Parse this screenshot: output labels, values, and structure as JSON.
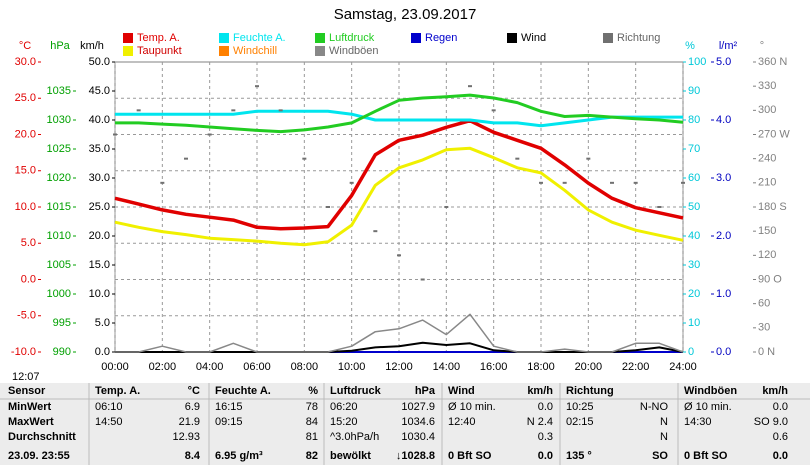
{
  "chart_data": {
    "type": "line",
    "title": "Samstag, 23.09.2017",
    "x": [
      0,
      1,
      2,
      3,
      4,
      5,
      6,
      7,
      8,
      9,
      10,
      11,
      12,
      13,
      14,
      15,
      16,
      17,
      18,
      19,
      20,
      21,
      22,
      23,
      24
    ],
    "xlim": [
      0,
      24
    ],
    "xticks": [
      {
        "value": 0,
        "label": "00:00"
      },
      {
        "value": 2,
        "label": "02:00"
      },
      {
        "value": 4,
        "label": "04:00"
      },
      {
        "value": 6,
        "label": "06:00"
      },
      {
        "value": 8,
        "label": "08:00"
      },
      {
        "value": 10,
        "label": "10:00"
      },
      {
        "value": 12,
        "label": "12:00"
      },
      {
        "value": 14,
        "label": "14:00"
      },
      {
        "value": 16,
        "label": "16:00"
      },
      {
        "value": 18,
        "label": "18:00"
      },
      {
        "value": 20,
        "label": "20:00"
      },
      {
        "value": 22,
        "label": "22:00"
      },
      {
        "value": 24,
        "label": "24:00"
      }
    ],
    "grid": true,
    "ylabel": "°C",
    "ycolor": "#e00000",
    "ylim": [
      -10,
      30
    ],
    "yticks": [
      {
        "value": -10,
        "label": "-10.0"
      },
      {
        "value": -5,
        "label": "-5.0"
      },
      {
        "value": 0,
        "label": "0.0"
      },
      {
        "value": 5,
        "label": "5.0"
      },
      {
        "value": 10,
        "label": "10.0"
      },
      {
        "value": 15,
        "label": "15.0"
      },
      {
        "value": 20,
        "label": "20.0"
      },
      {
        "value": 25,
        "label": "25.0"
      },
      {
        "value": 30,
        "label": "30.0"
      }
    ],
    "y2label": "hPa",
    "y2color": "#00a000",
    "y2lim": [
      990,
      1040
    ],
    "y2ticks": [
      990,
      995,
      1000,
      1005,
      1010,
      1015,
      1020,
      1025,
      1030,
      1035
    ],
    "y3label": "km/h",
    "y3color": "#000000",
    "y3lim": [
      0,
      50
    ],
    "y3ticks": [
      {
        "value": 0,
        "label": "0.0"
      },
      {
        "value": 5,
        "label": "5.0"
      },
      {
        "value": 10,
        "label": "10.0"
      },
      {
        "value": 15,
        "label": "15.0"
      },
      {
        "value": 20,
        "label": "20.0"
      },
      {
        "value": 25,
        "label": "25.0"
      },
      {
        "value": 30,
        "label": "30.0"
      },
      {
        "value": 35,
        "label": "35.0"
      },
      {
        "value": 40,
        "label": "40.0"
      },
      {
        "value": 45,
        "label": "45.0"
      },
      {
        "value": 50,
        "label": "50.0"
      }
    ],
    "y4label": "%",
    "y4color": "#00c8d8",
    "y4lim": [
      0,
      100
    ],
    "y4ticks": [
      0,
      10,
      20,
      30,
      40,
      50,
      60,
      70,
      80,
      90,
      100
    ],
    "y5label": "l/m²",
    "y5color": "#0000c0",
    "y5lim": [
      0,
      5
    ],
    "y5ticks": [
      {
        "value": 0,
        "label": "0.0"
      },
      {
        "value": 1,
        "label": "1.0"
      },
      {
        "value": 2,
        "label": "2.0"
      },
      {
        "value": 3,
        "label": "3.0"
      },
      {
        "value": 4,
        "label": "4.0"
      },
      {
        "value": 5,
        "label": "5.0"
      }
    ],
    "y6label": "°",
    "y6color": "#808080",
    "y6lim": [
      0,
      360
    ],
    "y6ticks": [
      {
        "value": 0,
        "label": "0 N"
      },
      30,
      60,
      {
        "value": 90,
        "label": "90 O"
      },
      120,
      150,
      {
        "value": 180,
        "label": "180 S"
      },
      210,
      240,
      {
        "value": 270,
        "label": "270 W"
      },
      300,
      330,
      {
        "value": 360,
        "label": "360 N"
      }
    ],
    "series": [
      {
        "name": "Temp. A.",
        "color": "#e00000",
        "axis": "y",
        "width": 3.5,
        "values": [
          11.2,
          10.4,
          9.6,
          9.0,
          8.6,
          8.2,
          7.2,
          7.0,
          7.1,
          7.3,
          11.6,
          17.2,
          19.2,
          19.9,
          21.0,
          21.9,
          20.3,
          19.2,
          18.1,
          15.8,
          13.3,
          11.2,
          9.9,
          9.2,
          8.5
        ]
      },
      {
        "name": "Feuchte A.",
        "color": "#00e5ee",
        "axis": "y4",
        "width": 3,
        "values": [
          82,
          82,
          82,
          82,
          82,
          82,
          83,
          83,
          83,
          83,
          82,
          80,
          80,
          80,
          80,
          80,
          79,
          79,
          78,
          79,
          80,
          81,
          81,
          81,
          81
        ]
      },
      {
        "name": "Luftdruck",
        "color": "#22cc22",
        "axis": "y2",
        "width": 3,
        "values": [
          1029.5,
          1029.5,
          1029.3,
          1029.1,
          1028.8,
          1028.5,
          1028.2,
          1028.0,
          1028.3,
          1028.8,
          1029.5,
          1031.5,
          1033.4,
          1033.8,
          1034.0,
          1034.3,
          1033.8,
          1033.0,
          1031.5,
          1030.6,
          1030.8,
          1030.5,
          1030.2,
          1030.0,
          1029.6
        ]
      },
      {
        "name": "Regen",
        "color": "#0000cc",
        "axis": "y5",
        "width": 2,
        "values": [
          0,
          0,
          0,
          0,
          0,
          0,
          0,
          0,
          0,
          0,
          0,
          0,
          0,
          0,
          0,
          0,
          0,
          0,
          0,
          0,
          0,
          0,
          0,
          0,
          0
        ]
      },
      {
        "name": "Wind",
        "color": "#000000",
        "axis": "y3",
        "width": 2,
        "values": [
          0,
          0,
          0,
          0,
          0,
          0,
          0,
          0,
          0,
          0,
          0.2,
          0.8,
          1.0,
          1.6,
          1.2,
          1.5,
          0.3,
          0,
          0,
          0,
          0,
          0,
          0.3,
          0.8,
          0
        ]
      },
      {
        "name": "Richtung",
        "color": "#707070",
        "axis": "y6",
        "dots": true,
        "values": [
          270,
          300,
          210,
          240,
          270,
          300,
          330,
          300,
          240,
          180,
          210,
          150,
          120,
          90,
          180,
          330,
          300,
          240,
          210,
          210,
          240,
          210,
          210,
          180,
          210
        ]
      },
      {
        "name": "Taupunkt",
        "color": "#f0f000",
        "axis": "y",
        "width": 3,
        "values": [
          7.9,
          7.2,
          6.6,
          6.2,
          5.7,
          5.5,
          5.3,
          5.0,
          4.8,
          5.2,
          7.5,
          13.0,
          15.4,
          16.5,
          17.9,
          18.1,
          16.8,
          15.4,
          14.7,
          12.3,
          9.6,
          7.9,
          6.8,
          6.1,
          5.4
        ]
      },
      {
        "name": "Windchill",
        "color": "#ff8000",
        "axis": "y",
        "width": 2,
        "values": [
          null,
          null,
          null,
          null,
          null,
          null,
          null,
          null,
          null,
          null,
          null,
          null,
          null,
          null,
          null,
          null,
          null,
          null,
          null,
          null,
          null,
          null,
          null,
          null,
          null
        ]
      },
      {
        "name": "Windböen",
        "color": "#888888",
        "axis": "y3",
        "width": 1.5,
        "values": [
          0,
          0,
          1.0,
          0,
          0,
          1.5,
          0,
          0,
          0,
          0,
          1.0,
          3.5,
          4.0,
          5.5,
          3.0,
          6.5,
          1.0,
          0,
          0,
          0.5,
          0,
          0,
          1.5,
          1.5,
          0
        ]
      }
    ]
  },
  "time_label": "12:07",
  "table": {
    "header": {
      "label": "Sensor",
      "cells": [
        [
          "Temp. A.",
          "°C"
        ],
        [
          "Feuchte A.",
          "%"
        ],
        [
          "Luftdruck",
          "hPa"
        ],
        [
          "Wind",
          "km/h"
        ],
        [
          "Richtung",
          ""
        ],
        [
          "Windböen",
          "km/h"
        ]
      ]
    },
    "rows": [
      {
        "label": "MinWert",
        "cells": [
          [
            "06:10",
            "6.9"
          ],
          [
            "16:15",
            "78"
          ],
          [
            "06:20",
            "1027.9"
          ],
          [
            "Ø 10 min.",
            "0.0"
          ],
          [
            "10:25",
            "N-NO"
          ],
          [
            "Ø 10 min.",
            "0.0"
          ]
        ]
      },
      {
        "label": "MaxWert",
        "cells": [
          [
            "14:50",
            "21.9"
          ],
          [
            "09:15",
            "84"
          ],
          [
            "15:20",
            "1034.6"
          ],
          [
            "12:40",
            "N 2.4"
          ],
          [
            "02:15",
            "N"
          ],
          [
            "14:30",
            "SO 9.0"
          ]
        ]
      },
      {
        "label": "Durchschnitt",
        "cells": [
          [
            "",
            "12.93"
          ],
          [
            "",
            "81"
          ],
          [
            "^3.0hPa/h",
            "1030.4"
          ],
          [
            "",
            "0.3"
          ],
          [
            "",
            "N"
          ],
          [
            "",
            "0.6"
          ]
        ]
      },
      {
        "label": "23.09. 23:55",
        "cells": [
          [
            "",
            "8.4"
          ],
          [
            "6.95 g/m³",
            "82"
          ],
          [
            "bewölkt",
            "↓1028.8"
          ],
          [
            "0 Bft SO",
            "0.0"
          ],
          [
            "135 °",
            "SO"
          ],
          [
            "0 Bft SO",
            "0.0"
          ]
        ]
      }
    ]
  }
}
